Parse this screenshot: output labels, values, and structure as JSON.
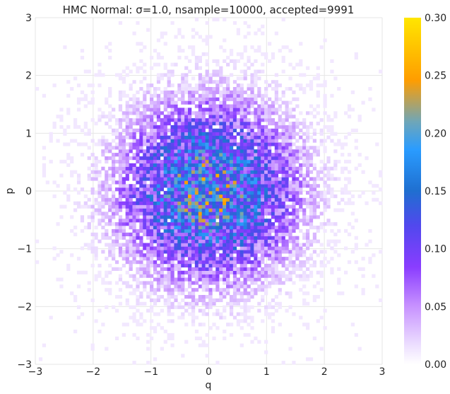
{
  "chart_data": {
    "type": "heatmap",
    "title": "HMC Normal: σ=1.0, nsample=10000, accepted=9991",
    "xlabel": "q",
    "ylabel": "p",
    "xlim": [
      -3,
      3
    ],
    "ylim": [
      -3,
      3
    ],
    "xticks": [
      -3,
      -2,
      -1,
      0,
      1,
      2,
      3
    ],
    "yticks": [
      -3,
      -2,
      -1,
      0,
      1,
      2,
      3
    ],
    "grid": true,
    "bins": 100,
    "distribution": "standard normal, sigma 1.0, centered at (0, 0)",
    "colorbar": {
      "range": [
        0.0,
        0.3
      ],
      "ticks": [
        "0.00",
        "0.05",
        "0.10",
        "0.15",
        "0.20",
        "0.25",
        "0.30"
      ],
      "colors": [
        "#ffffff",
        "#8a3dff",
        "#1f6fd0",
        "#2a9cff",
        "#ff9d00",
        "#ffe600"
      ]
    }
  }
}
